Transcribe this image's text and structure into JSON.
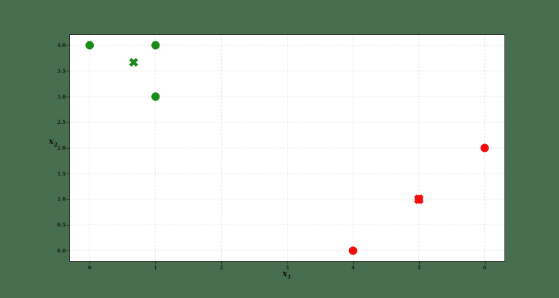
{
  "colors": {
    "figure_background": "#476E4F",
    "plot_background": "#ffffff",
    "spine": "#2d2d2d",
    "gridline": "#e4e4e4",
    "tick_label": "#1a1a1a",
    "green_cluster": "#1a8c1a",
    "red_cluster": "#f20c0c"
  },
  "chart_data": {
    "type": "scatter",
    "title": "",
    "xlabel": {
      "base": "x",
      "sub": "1"
    },
    "ylabel": {
      "base": "x",
      "sub": "2"
    },
    "xlim": [
      -0.3,
      6.3
    ],
    "ylim": [
      -0.2,
      4.2
    ],
    "grid": true,
    "grid_style": "dashed",
    "x_tick_labels": [
      "0",
      "1",
      "2",
      "3",
      "4",
      "5",
      "6"
    ],
    "y_tick_labels": [
      "0.0",
      "0.5",
      "1.0",
      "1.5",
      "2.0",
      "2.5",
      "3.0",
      "3.5",
      "4.0"
    ],
    "series": [
      {
        "name": "green-cluster-points",
        "marker": "circle",
        "color": "#1a8c1a",
        "radius": 6,
        "points": [
          [
            0,
            4.0
          ],
          [
            1,
            4.0
          ],
          [
            1,
            3.0
          ]
        ]
      },
      {
        "name": "green-cluster-centroid",
        "marker": "x",
        "color": "#1a8c1a",
        "arm_length": 13.5,
        "arm_thickness": 4.6,
        "points": [
          [
            0.667,
            3.667
          ]
        ]
      },
      {
        "name": "red-cluster-points",
        "marker": "circle",
        "color": "#f20c0c",
        "radius": 6,
        "points": [
          [
            4,
            0.0
          ],
          [
            5,
            1.0
          ],
          [
            6,
            2.0
          ]
        ]
      },
      {
        "name": "red-cluster-centroid",
        "marker": "x",
        "color": "#f20c0c",
        "arm_length": 14.5,
        "arm_thickness": 5,
        "points": [
          [
            5,
            1.0
          ]
        ]
      }
    ]
  }
}
